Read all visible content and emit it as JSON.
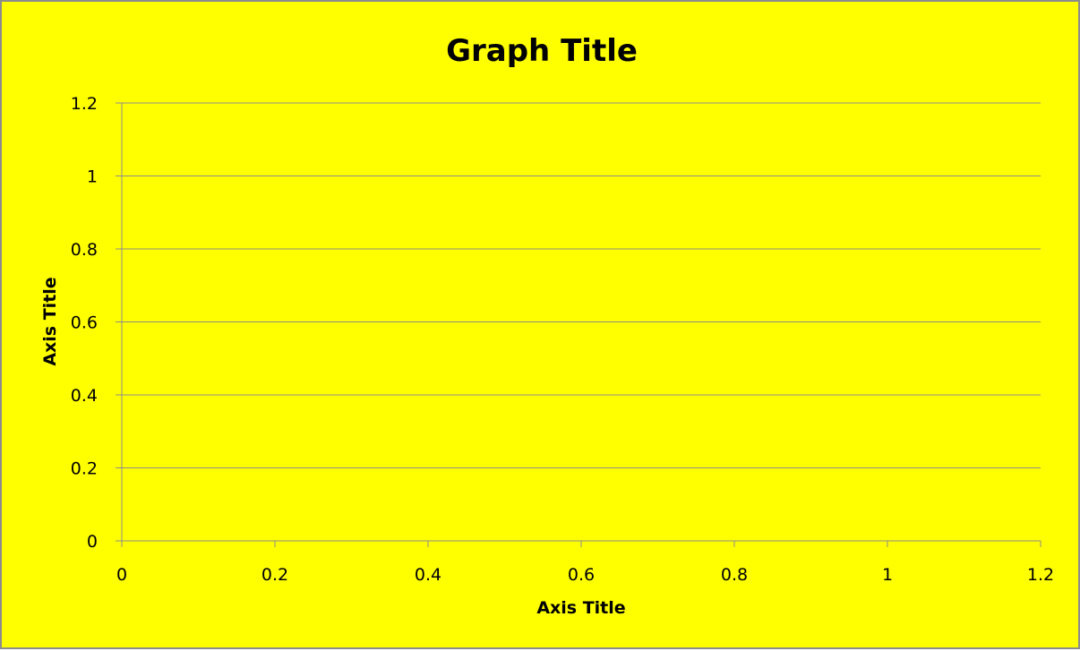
{
  "chart_data": {
    "type": "scatter",
    "title": "Graph Title",
    "xlabel": "Axis Title",
    "ylabel": "Axis Title",
    "xlim": [
      0,
      1.2
    ],
    "ylim": [
      0,
      1.2
    ],
    "x_ticks": [
      "0",
      "0.2",
      "0.4",
      "0.6",
      "0.8",
      "1",
      "1.2"
    ],
    "y_ticks": [
      "0",
      "0.2",
      "0.4",
      "0.6",
      "0.8",
      "1",
      "1.2"
    ],
    "grid": "horizontal",
    "series": []
  },
  "colors": {
    "background": "#ffff00",
    "gridline": "#8c8c8c",
    "axis": "#8c8c8c",
    "text": "#000000"
  }
}
